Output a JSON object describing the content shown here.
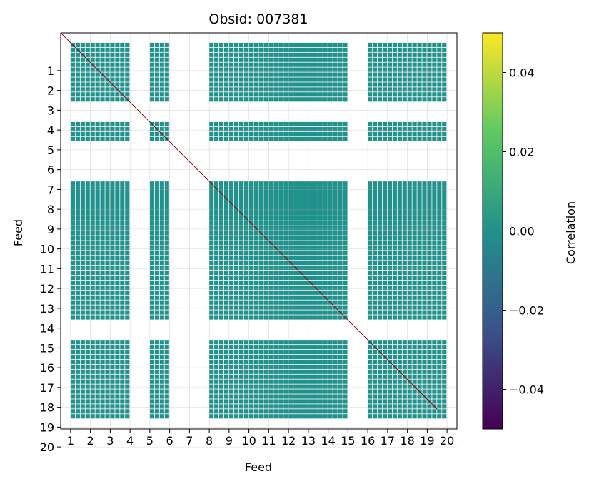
{
  "chart_data": {
    "type": "heatmap",
    "title": "Obsid: 007381",
    "xlabel": "Feed",
    "ylabel": "Feed",
    "feeds": [
      1,
      2,
      3,
      4,
      5,
      6,
      7,
      8,
      9,
      10,
      11,
      12,
      13,
      14,
      15,
      16,
      17,
      18,
      19,
      20
    ],
    "x_tick_labels": [
      "1",
      "2",
      "3",
      "4",
      "5",
      "6",
      "7",
      "8",
      "9",
      "10",
      "11",
      "12",
      "13",
      "14",
      "15",
      "16",
      "17",
      "18",
      "19",
      "20"
    ],
    "y_tick_labels": [
      "1",
      "2",
      "3",
      "4",
      "5",
      "6",
      "7",
      "8",
      "9",
      "10",
      "11",
      "12",
      "13",
      "14",
      "15",
      "16",
      "17",
      "18",
      "19",
      "20"
    ],
    "active_feeds": [
      1,
      2,
      3,
      5,
      8,
      9,
      10,
      11,
      12,
      13,
      14,
      16,
      17,
      18,
      19
    ],
    "sub_blocks_per_feed": 4,
    "cell_value": 0.0,
    "cell_color": "#21918c",
    "grid": true,
    "colorbar": {
      "label": "Correlation",
      "vmin": -0.05,
      "vmax": 0.05,
      "ticks": [
        0.04,
        0.02,
        0.0,
        -0.02,
        -0.04
      ],
      "tick_labels": [
        "0.04",
        "0.02",
        "0.00",
        "−0.02",
        "−0.04"
      ],
      "colormap": "viridis",
      "stops": [
        "#440154",
        "#3b528b",
        "#21918c",
        "#5ec962",
        "#fde725"
      ]
    }
  }
}
